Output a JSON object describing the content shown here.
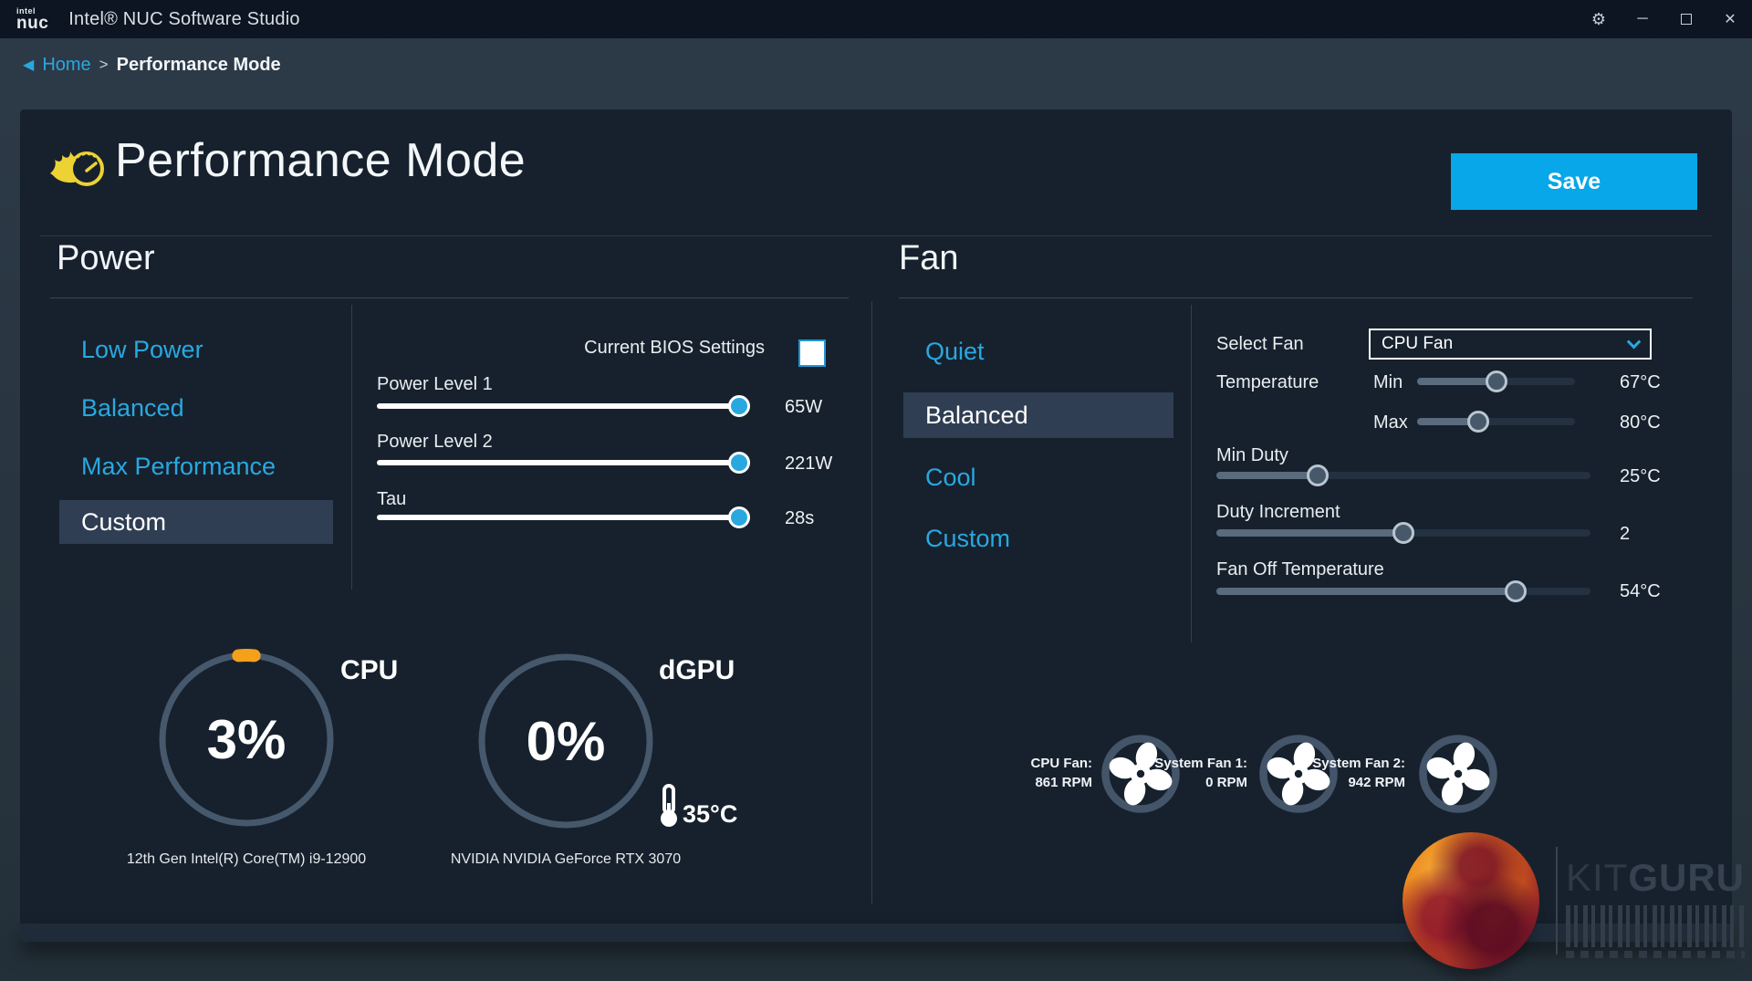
{
  "colors": {
    "accent": "#29A8E0",
    "save": "#07A7E9",
    "orange": "#F5A01B",
    "card": "#16212D"
  },
  "icons": {
    "back": "◀",
    "gear": "⚙",
    "minimize": "─",
    "close": "✕"
  },
  "titlebar": {
    "logo_top": "intel",
    "logo_bottom": "nuc",
    "title": "Intel® NUC Software Studio"
  },
  "breadcrumb": {
    "home": "Home",
    "separator": ">",
    "current": "Performance Mode"
  },
  "header": {
    "title": "Performance Mode",
    "save_label": "Save"
  },
  "power": {
    "heading": "Power",
    "menu": [
      {
        "label": "Low Power",
        "selected": false
      },
      {
        "label": "Balanced",
        "selected": false
      },
      {
        "label": "Max Performance",
        "selected": false
      },
      {
        "label": "Custom",
        "selected": true
      }
    ],
    "bios_label": "Current BIOS Settings",
    "bios_checked": false,
    "sliders": [
      {
        "label": "Power Level 1",
        "value": "65W",
        "percent": 97
      },
      {
        "label": "Power Level 2",
        "value": "221W",
        "percent": 97
      },
      {
        "label": "Tau",
        "value": "28s",
        "percent": 97
      }
    ],
    "gauges": {
      "cpu": {
        "title": "CPU",
        "value": 3,
        "label": "3%",
        "sub": "12th Gen Intel(R) Core(TM) i9-12900"
      },
      "gpu": {
        "title": "dGPU",
        "value": 0,
        "label": "0%",
        "temp": "35°C",
        "sub": "NVIDIA NVIDIA GeForce RTX 3070"
      }
    }
  },
  "fan": {
    "heading": "Fan",
    "menu": [
      {
        "label": "Quiet",
        "selected": false
      },
      {
        "label": "Balanced",
        "selected": true
      },
      {
        "label": "Cool",
        "selected": false
      },
      {
        "label": "Custom",
        "selected": false
      }
    ],
    "select_fan": {
      "label": "Select Fan",
      "value": "CPU Fan"
    },
    "temperature": {
      "label": "Temperature",
      "rows": [
        {
          "label": "Min",
          "value": "67°C",
          "percent": 50
        },
        {
          "label": "Max",
          "value": "80°C",
          "percent": 39
        }
      ]
    },
    "sliders": [
      {
        "label": "Min Duty",
        "value": "25°C",
        "percent": 27
      },
      {
        "label": "Duty Increment",
        "value": "2",
        "percent": 50
      },
      {
        "label": "Fan Off Temperature",
        "value": "54°C",
        "percent": 80
      }
    ],
    "fans": [
      {
        "name": "CPU Fan:",
        "rpm": "861 RPM"
      },
      {
        "name": "System Fan 1:",
        "rpm": "0 RPM"
      },
      {
        "name": "System Fan 2:",
        "rpm": "942 RPM"
      }
    ]
  },
  "watermark": {
    "kit": "KIT",
    "guru": "GURU"
  }
}
